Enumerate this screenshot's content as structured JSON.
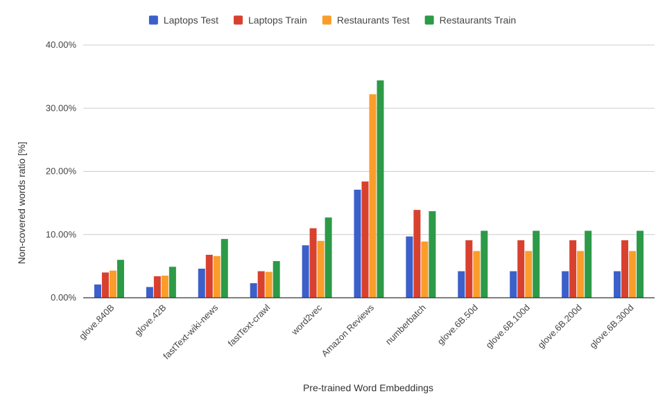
{
  "chart_data": {
    "type": "bar",
    "xlabel": "Pre-trained Word Embeddings",
    "ylabel": "Non-covered words ratio [%]",
    "ylim": [
      0,
      40
    ],
    "yticks": [
      "0.00%",
      "10.00%",
      "20.00%",
      "30.00%",
      "40.00%"
    ],
    "ytick_values": [
      0,
      10,
      20,
      30,
      40
    ],
    "grid": true,
    "legend_position": "top",
    "categories": [
      "glove.840B",
      "glove.42B",
      "fastText-wiki-news",
      "fastText-crawl",
      "word2vec",
      "Amazon Reviews",
      "numberbatch",
      "glove.6B.50d",
      "glove.6B.100d",
      "glove.6B.200d",
      "glove.6B.300d"
    ],
    "series": [
      {
        "name": "Laptops Test",
        "color": "#3c5fc9",
        "values": [
          2.1,
          1.7,
          4.6,
          2.3,
          8.3,
          17.1,
          9.7,
          4.2,
          4.2,
          4.2,
          4.2
        ]
      },
      {
        "name": "Laptops Train",
        "color": "#d9412f",
        "values": [
          4.0,
          3.4,
          6.8,
          4.2,
          11.0,
          18.4,
          13.9,
          9.1,
          9.1,
          9.1,
          9.1
        ]
      },
      {
        "name": "Restaurants Test",
        "color": "#fa9d2a",
        "values": [
          4.3,
          3.5,
          6.6,
          4.1,
          9.0,
          32.2,
          8.9,
          7.4,
          7.4,
          7.4,
          7.4
        ]
      },
      {
        "name": "Restaurants Train",
        "color": "#2c9a47",
        "values": [
          6.0,
          4.9,
          9.3,
          5.8,
          12.7,
          34.4,
          13.7,
          10.6,
          10.6,
          10.6,
          10.6
        ]
      }
    ]
  }
}
